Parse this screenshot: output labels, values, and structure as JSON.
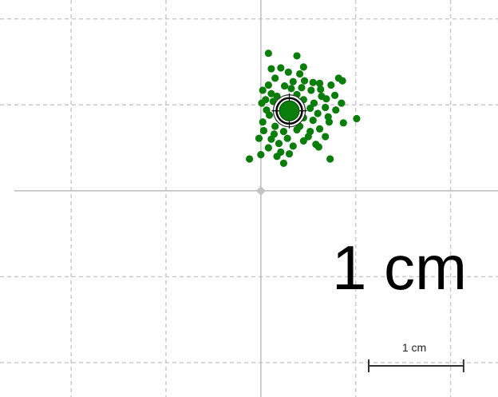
{
  "chart_data": {
    "type": "scatter",
    "units": "cm",
    "xlim": [
      -2.75,
      2.5
    ],
    "ylim": [
      -2.4,
      2.22
    ],
    "grid": true,
    "grid_spacing": 1,
    "annotation": "1 cm",
    "scale_bar": {
      "label": "1 cm",
      "length": 1
    },
    "colors": {
      "points": "#0a7d0a",
      "grid": "#c8c8c8",
      "axis": "#c0c0c0",
      "text": "#000000"
    },
    "center_marker": {
      "x": 0.3,
      "y": 0.93,
      "icon": "crosshair-target-icon"
    },
    "origin_marker": {
      "x": 0,
      "y": 0
    },
    "points": [
      [
        0.08,
        1.6
      ],
      [
        0.38,
        1.57
      ],
      [
        0.21,
        1.43
      ],
      [
        0.11,
        1.42
      ],
      [
        0.41,
        1.36
      ],
      [
        0.45,
        1.44
      ],
      [
        0.29,
        1.38
      ],
      [
        0.15,
        1.31
      ],
      [
        0.34,
        1.27
      ],
      [
        0.46,
        1.28
      ],
      [
        0.55,
        1.26
      ],
      [
        0.62,
        1.25
      ],
      [
        0.82,
        1.31
      ],
      [
        0.86,
        1.28
      ],
      [
        0.74,
        1.23
      ],
      [
        0.08,
        1.23
      ],
      [
        0.25,
        1.22
      ],
      [
        0.43,
        1.2
      ],
      [
        0.53,
        1.17
      ],
      [
        0.38,
        1.12
      ],
      [
        0.11,
        1.13
      ],
      [
        0.02,
        1.17
      ],
      [
        0.17,
        1.1
      ],
      [
        0.29,
        1.08
      ],
      [
        0.45,
        1.06
      ],
      [
        0.64,
        1.1
      ],
      [
        0.56,
        1.02
      ],
      [
        0.69,
        1.07
      ],
      [
        0.78,
        1.11
      ],
      [
        0.85,
        1.02
      ],
      [
        0.01,
        1.02
      ],
      [
        0.13,
        1.04
      ],
      [
        0.06,
        0.94
      ],
      [
        0.22,
        0.99
      ],
      [
        0.39,
        0.96
      ],
      [
        0.52,
        0.96
      ],
      [
        0.68,
        0.97
      ],
      [
        0.79,
        0.94
      ],
      [
        0.6,
        0.9
      ],
      [
        0.45,
        0.85
      ],
      [
        0.09,
        0.88
      ],
      [
        0.19,
        0.84
      ],
      [
        0.02,
        0.8
      ],
      [
        0.29,
        0.8
      ],
      [
        0.55,
        0.82
      ],
      [
        0.72,
        0.8
      ],
      [
        0.87,
        0.79
      ],
      [
        1.01,
        0.84
      ],
      [
        0.15,
        0.75
      ],
      [
        0.41,
        0.75
      ],
      [
        0.62,
        0.72
      ],
      [
        0.03,
        0.7
      ],
      [
        0.24,
        0.69
      ],
      [
        0.52,
        0.69
      ],
      [
        0.68,
        0.63
      ],
      [
        -0.02,
        0.61
      ],
      [
        0.11,
        0.6
      ],
      [
        0.28,
        0.61
      ],
      [
        0.45,
        0.58
      ],
      [
        0.58,
        0.54
      ],
      [
        0.19,
        0.55
      ],
      [
        0.08,
        0.5
      ],
      [
        -0.12,
        0.37
      ],
      [
        0.0,
        0.42
      ],
      [
        0.17,
        0.4
      ],
      [
        0.3,
        0.43
      ],
      [
        0.24,
        0.32
      ],
      [
        0.21,
        0.45
      ],
      [
        0.73,
        0.37
      ],
      [
        0.61,
        0.51
      ],
      [
        0.38,
        0.71
      ],
      [
        0.14,
        0.66
      ],
      [
        0.5,
        0.63
      ],
      [
        0.34,
        0.52
      ],
      [
        0.42,
        0.89
      ],
      [
        0.05,
        1.06
      ],
      [
        0.32,
        1.19
      ],
      [
        0.63,
        1.18
      ],
      [
        0.71,
        0.86
      ]
    ]
  }
}
